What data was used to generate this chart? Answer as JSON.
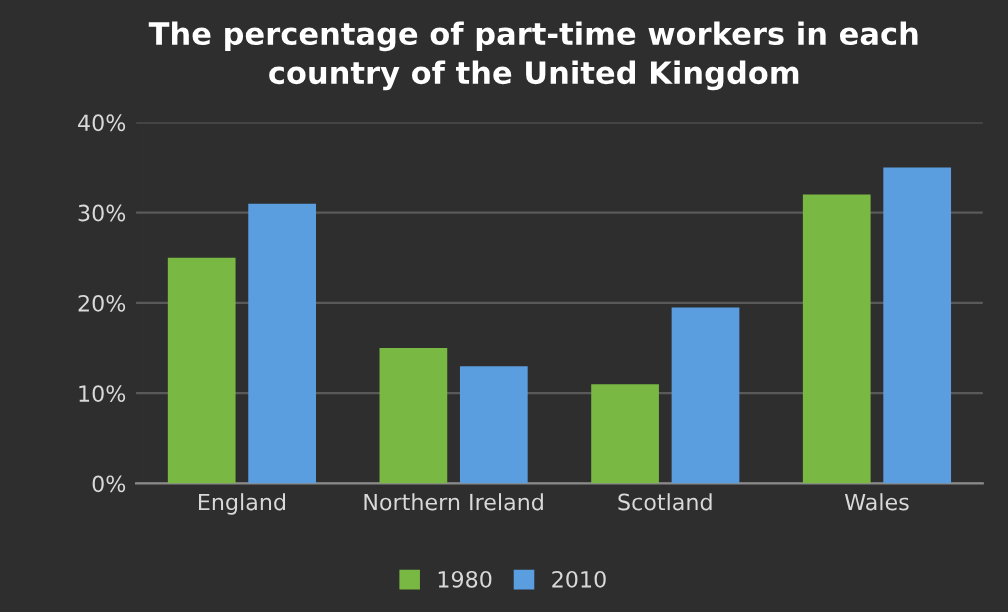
{
  "chart_data": {
    "type": "bar",
    "title": "The percentage of part-time workers in each\ncountry of the United Kingdom",
    "categories": [
      "England",
      "Northern Ireland",
      "Scotland",
      "Wales"
    ],
    "series": [
      {
        "name": "1980",
        "color": "#78b843",
        "values": [
          25,
          15,
          11,
          32
        ]
      },
      {
        "name": "2010",
        "color": "#5b9ee0",
        "values": [
          31,
          13,
          19.5,
          35
        ]
      }
    ],
    "ylim": [
      0,
      40
    ],
    "yticks": [
      {
        "value": 0,
        "label": "0%"
      },
      {
        "value": 10,
        "label": "10%"
      },
      {
        "value": 20,
        "label": "20%"
      },
      {
        "value": 30,
        "label": "30%"
      },
      {
        "value": 40,
        "label": "40%"
      }
    ],
    "grid": "y",
    "legend": "bottom"
  }
}
